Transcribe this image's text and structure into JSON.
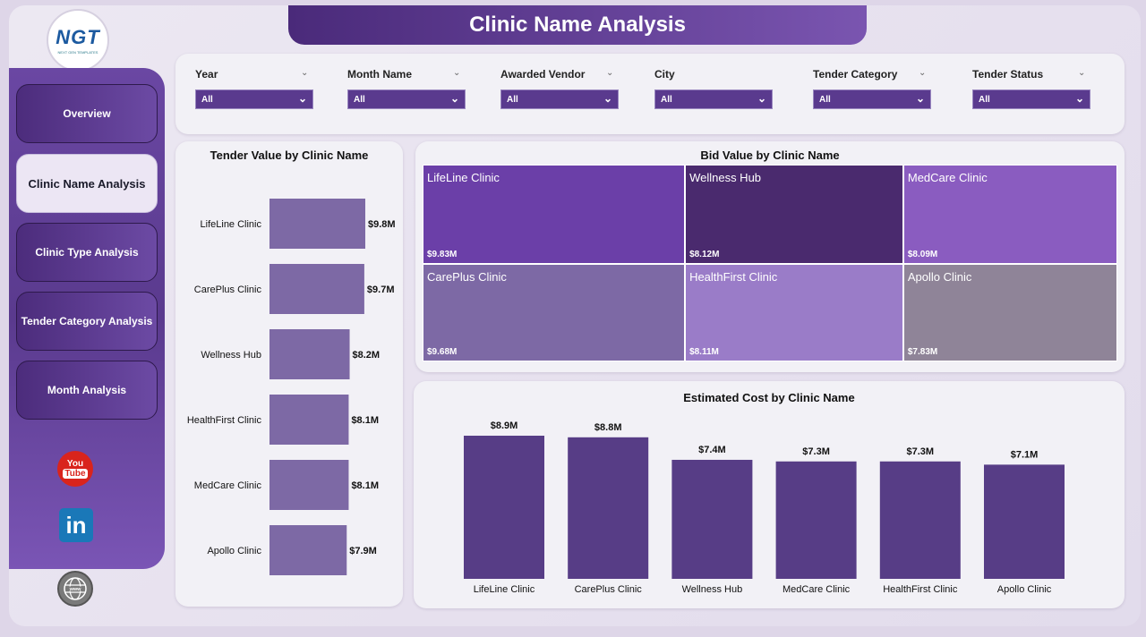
{
  "header": {
    "title": "Clinic Name Analysis"
  },
  "logo": {
    "text": "NGT",
    "subtitle": "NEXT GEN TEMPLATES"
  },
  "sidebar": {
    "items": [
      {
        "label": "Overview",
        "active": false
      },
      {
        "label": "Clinic Name Analysis",
        "active": true
      },
      {
        "label": "Clinic Type Analysis",
        "active": false
      },
      {
        "label": "Tender Category Analysis",
        "active": false
      },
      {
        "label": "Month Analysis",
        "active": false
      }
    ],
    "social": {
      "youtube_top": "You",
      "youtube_bottom": "Tube",
      "linkedin": "in"
    }
  },
  "filters": [
    {
      "label": "Year",
      "value": "All"
    },
    {
      "label": "Month Name",
      "value": "All"
    },
    {
      "label": "Awarded Vendor",
      "value": "All"
    },
    {
      "label": "City",
      "value": "All"
    },
    {
      "label": "Tender Category",
      "value": "All"
    },
    {
      "label": "Tender Status",
      "value": "All"
    }
  ],
  "colors": {
    "accent": "#5a3a8e",
    "hbar": "#7d69a5",
    "vbar": "#573d86"
  },
  "chart_data": [
    {
      "type": "bar",
      "orientation": "horizontal",
      "title": "Tender Value by Clinic Name",
      "categories": [
        "LifeLine Clinic",
        "CarePlus Clinic",
        "Wellness Hub",
        "HealthFirst Clinic",
        "MedCare Clinic",
        "Apollo Clinic"
      ],
      "values": [
        9.8,
        9.7,
        8.2,
        8.1,
        8.1,
        7.9
      ],
      "labels": [
        "$9.8M",
        "$9.7M",
        "$8.2M",
        "$8.1M",
        "$8.1M",
        "$7.9M"
      ],
      "unit": "$M"
    },
    {
      "type": "treemap",
      "title": "Bid Value by Clinic Name",
      "items": [
        {
          "name": "LifeLine Clinic",
          "value": 9.83,
          "label": "$9.83M",
          "color": "#6b3fa8"
        },
        {
          "name": "Wellness Hub",
          "value": 8.12,
          "label": "$8.12M",
          "color": "#4a2a6e"
        },
        {
          "name": "MedCare Clinic",
          "value": 8.09,
          "label": "$8.09M",
          "color": "#8a5cc0"
        },
        {
          "name": "CarePlus Clinic",
          "value": 9.68,
          "label": "$9.68M",
          "color": "#7d69a5"
        },
        {
          "name": "HealthFirst Clinic",
          "value": 8.11,
          "label": "$8.11M",
          "color": "#9a7cc8"
        },
        {
          "name": "Apollo Clinic",
          "value": 7.83,
          "label": "$7.83M",
          "color": "#8f8498"
        }
      ]
    },
    {
      "type": "bar",
      "title": "Estimated Cost by Clinic Name",
      "categories": [
        "LifeLine Clinic",
        "CarePlus Clinic",
        "Wellness Hub",
        "MedCare Clinic",
        "HealthFirst Clinic",
        "Apollo Clinic"
      ],
      "values": [
        8.9,
        8.8,
        7.4,
        7.3,
        7.3,
        7.1
      ],
      "labels": [
        "$8.9M",
        "$8.8M",
        "$7.4M",
        "$7.3M",
        "$7.3M",
        "$7.1M"
      ],
      "unit": "$M"
    }
  ]
}
